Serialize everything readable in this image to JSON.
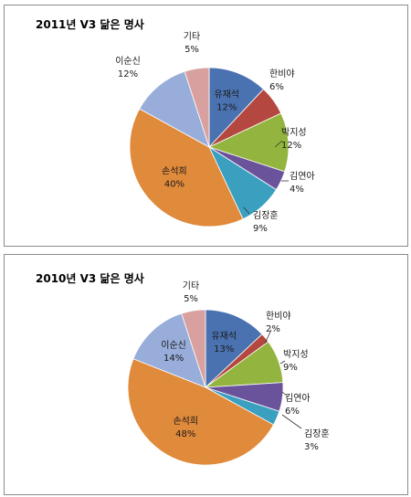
{
  "chart_data": [
    {
      "type": "pie",
      "title": "2011년 V3 닮은 명사",
      "categories": [
        "유재석",
        "한비야",
        "박지성",
        "김연아",
        "김장훈",
        "손석희",
        "이순신",
        "기타"
      ],
      "values": [
        12,
        6,
        12,
        4,
        9,
        40,
        12,
        5
      ],
      "value_labels": [
        "12%",
        "6%",
        "12%",
        "4%",
        "9%",
        "40%",
        "12%",
        "5%"
      ],
      "colors": [
        "#4a72b0",
        "#b4473f",
        "#93b53f",
        "#6b539b",
        "#3b9fc0",
        "#e08a3b",
        "#98add9",
        "#d9a0a0"
      ],
      "legend": "none"
    },
    {
      "type": "pie",
      "title": "2010년 V3 닮은 명사",
      "categories": [
        "유재석",
        "한비야",
        "박지성",
        "김연아",
        "김장훈",
        "손석희",
        "이순신",
        "기타"
      ],
      "values": [
        13,
        2,
        9,
        6,
        3,
        48,
        14,
        5
      ],
      "value_labels": [
        "13%",
        "2%",
        "9%",
        "6%",
        "3%",
        "48%",
        "14%",
        "5%"
      ],
      "colors": [
        "#4a72b0",
        "#b4473f",
        "#93b53f",
        "#6b539b",
        "#3b9fc0",
        "#e08a3b",
        "#98add9",
        "#d9a0a0"
      ],
      "legend": "none"
    }
  ]
}
